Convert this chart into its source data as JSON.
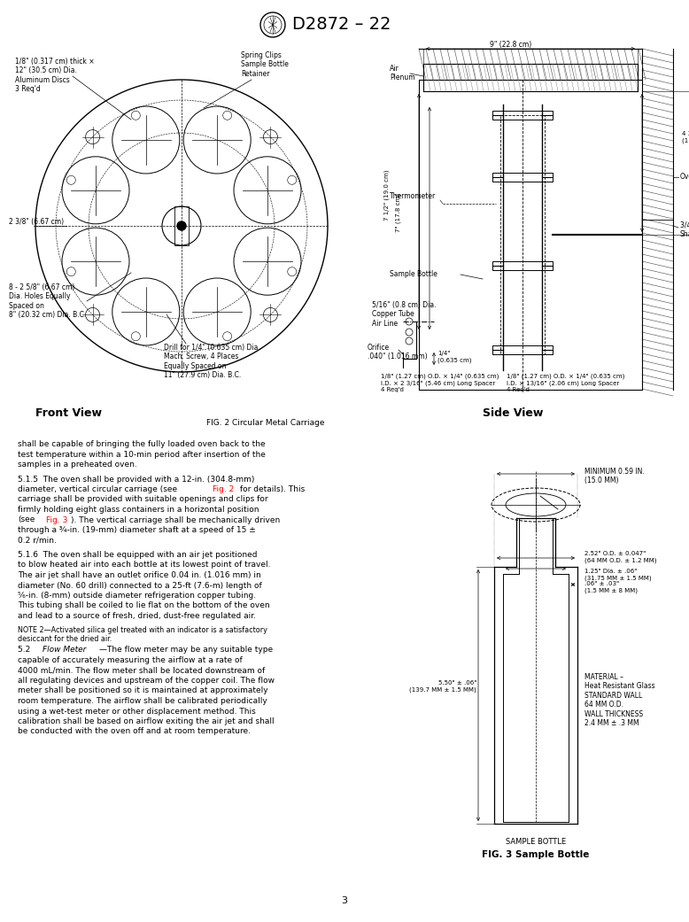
{
  "page_width": 7.78,
  "page_height": 10.41,
  "dpi": 100,
  "background_color": "#ffffff",
  "header_title": "D2872 – 22",
  "page_number": "3",
  "fig2_caption": "FIG. 2 Circular Metal Carriage",
  "fig3_caption": "FIG. 3 Sample Bottle",
  "front_view_label": "Front View",
  "side_view_label": "Side View"
}
